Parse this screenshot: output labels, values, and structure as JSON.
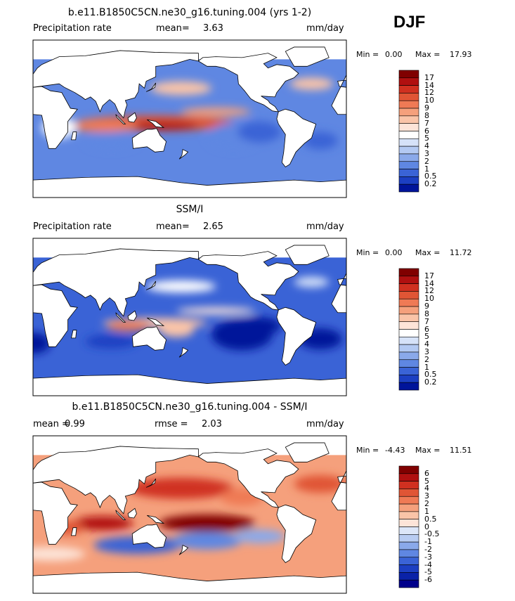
{
  "header": {
    "season": "DJF"
  },
  "panels": [
    {
      "title": "b.e11.B1850C5CN.ne30_g16.tuning.004 (yrs 1-2)",
      "variable": "Precipitation rate",
      "stats": [
        {
          "label": "mean=",
          "value": "3.63"
        }
      ],
      "units": "mm/day",
      "min_label": "Min =",
      "min": "0.00",
      "max_label": "Max =",
      "max": "17.93",
      "colorbar": {
        "labels": [
          "17",
          "14",
          "12",
          "10",
          "9",
          "8",
          "7",
          "6",
          "5",
          "4",
          "3",
          "2",
          "1",
          "0.5",
          "0.2"
        ],
        "colors": [
          "#800000",
          "#b01010",
          "#d03020",
          "#e05535",
          "#ef7a55",
          "#f5a07c",
          "#fac4a8",
          "#fde4d8",
          "#ffffff",
          "#d6e2f8",
          "#b3c9f2",
          "#8aa9ea",
          "#5f87e2",
          "#3a63d6",
          "#1c3fc2",
          "#00149a"
        ]
      }
    },
    {
      "title": "SSM/I",
      "variable": "Precipitation rate",
      "stats": [
        {
          "label": "mean=",
          "value": "2.65"
        }
      ],
      "units": "mm/day",
      "min_label": "Min =",
      "min": "0.00",
      "max_label": "Max =",
      "max": "11.72",
      "colorbar": {
        "labels": [
          "17",
          "14",
          "12",
          "10",
          "9",
          "8",
          "7",
          "6",
          "5",
          "4",
          "3",
          "2",
          "1",
          "0.5",
          "0.2"
        ],
        "colors": [
          "#800000",
          "#b01010",
          "#d03020",
          "#e05535",
          "#ef7a55",
          "#f5a07c",
          "#fac4a8",
          "#fde4d8",
          "#ffffff",
          "#d6e2f8",
          "#b3c9f2",
          "#8aa9ea",
          "#5f87e2",
          "#3a63d6",
          "#1c3fc2",
          "#00149a"
        ]
      }
    },
    {
      "title": "b.e11.B1850C5CN.ne30_g16.tuning.004 - SSM/I",
      "stats": [
        {
          "label": "mean =",
          "value": "0.99"
        },
        {
          "label": "rmse =",
          "value": "2.03"
        }
      ],
      "units": "mm/day",
      "min_label": "Min =",
      "min": "-4.43",
      "max_label": "Max =",
      "max": "11.51",
      "colorbar": {
        "labels": [
          "6",
          "5",
          "4",
          "3",
          "2",
          "1",
          "0.5",
          "0",
          "-0.5",
          "-1",
          "-2",
          "-3",
          "-4",
          "-5",
          "-6"
        ],
        "colors": [
          "#800000",
          "#b01010",
          "#d03020",
          "#e05535",
          "#ef7a55",
          "#f5a07c",
          "#fac4a8",
          "#fde4d8",
          "#dce6f8",
          "#b8ccf2",
          "#8aa9ea",
          "#5f87e2",
          "#3a63d6",
          "#1c3fc2",
          "#0a22a8",
          "#00008b"
        ]
      }
    }
  ]
}
